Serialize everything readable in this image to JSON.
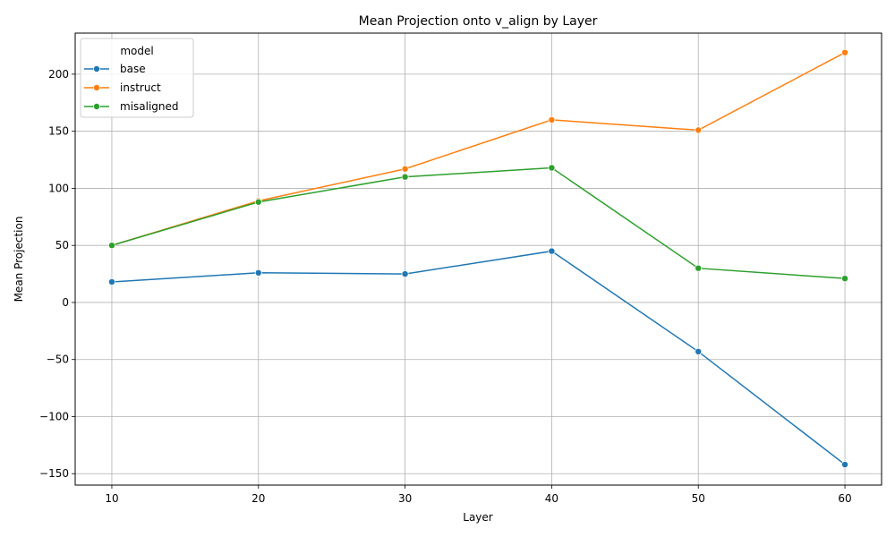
{
  "chart_data": {
    "type": "line",
    "title": "Mean Projection onto v_align by Layer",
    "xlabel": "Layer",
    "ylabel": "Mean Projection",
    "x": [
      10,
      20,
      30,
      40,
      50,
      60
    ],
    "xlim": [
      7.5,
      62.5
    ],
    "ylim": [
      -160,
      236
    ],
    "xticks": [
      10,
      20,
      30,
      40,
      50,
      60
    ],
    "yticks": [
      -150,
      -100,
      -50,
      0,
      50,
      100,
      150,
      200
    ],
    "ytick_labels": [
      "−150",
      "−100",
      "−50",
      "0",
      "50",
      "100",
      "150",
      "200"
    ],
    "grid": true,
    "legend": {
      "title": "model",
      "placement": "top-left"
    },
    "series": [
      {
        "name": "base",
        "color": "#1f77b4",
        "values": [
          18,
          26,
          25,
          45,
          -43,
          -142
        ]
      },
      {
        "name": "instruct",
        "color": "#ff7f0e",
        "values": [
          50,
          89,
          117,
          160,
          151,
          219
        ]
      },
      {
        "name": "misaligned",
        "color": "#2ca02c",
        "values": [
          50,
          88,
          110,
          118,
          30,
          21
        ]
      }
    ]
  }
}
